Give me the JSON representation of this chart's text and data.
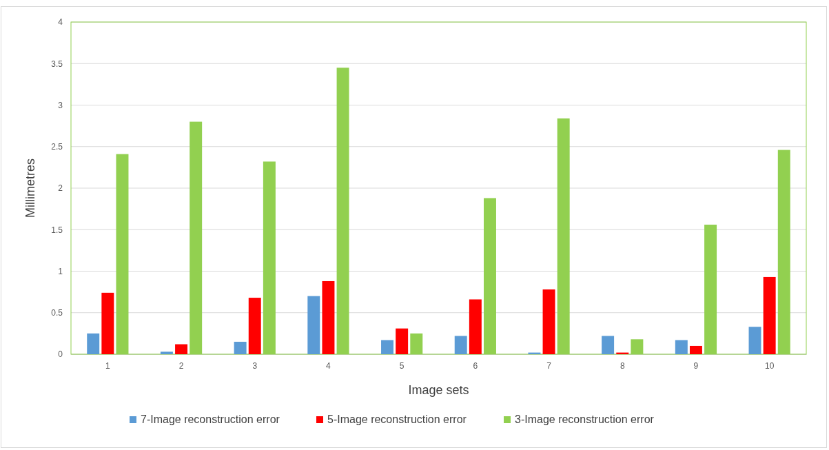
{
  "chart_data": {
    "type": "bar",
    "xlabel": "Image sets",
    "ylabel": "Millimetres",
    "categories": [
      "1",
      "2",
      "3",
      "4",
      "5",
      "6",
      "7",
      "8",
      "9",
      "10"
    ],
    "series": [
      {
        "name": "7-Image reconstruction error",
        "color": "#5b9bd5",
        "values": [
          0.25,
          0.03,
          0.15,
          0.7,
          0.17,
          0.22,
          0.02,
          0.22,
          0.17,
          0.33
        ]
      },
      {
        "name": "5-Image reconstruction error",
        "color": "#ff0000",
        "values": [
          0.74,
          0.12,
          0.68,
          0.88,
          0.31,
          0.66,
          0.78,
          0.02,
          0.1,
          0.93
        ]
      },
      {
        "name": "3-Image reconstruction error",
        "color": "#92d050",
        "values": [
          2.41,
          2.8,
          2.32,
          3.45,
          0.25,
          1.88,
          2.84,
          0.18,
          1.56,
          2.46
        ]
      }
    ],
    "ylim": [
      0,
      4
    ],
    "yticks": [
      0,
      0.5,
      1,
      1.5,
      2,
      2.5,
      3,
      3.5,
      4
    ],
    "grid": "y",
    "legend": "bottom"
  }
}
